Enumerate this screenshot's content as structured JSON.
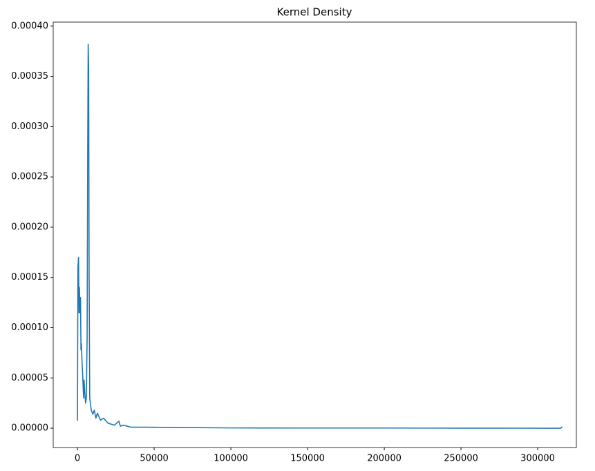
{
  "chart_data": {
    "type": "line",
    "title": "Kernel Density",
    "x": [
      0,
      300,
      700,
      1000,
      1300,
      1600,
      2000,
      2300,
      2600,
      3000,
      3500,
      4000,
      4300,
      4800,
      5300,
      5800,
      6300,
      6700,
      7000,
      7300,
      7600,
      8000,
      9000,
      10000,
      11000,
      12000,
      13000,
      15000,
      17000,
      20000,
      24000,
      27000,
      28000,
      30000,
      35000,
      45000,
      60000,
      100000,
      150000,
      200000,
      250000,
      315000,
      316000
    ],
    "series": [
      {
        "color": "#1f77b4",
        "values": [
          7.5e-06,
          0.00016,
          0.00017,
          0.000115,
          0.00014,
          0.000115,
          0.00013,
          7.8e-05,
          8.4e-05,
          6.5e-05,
          5e-05,
          3e-05,
          4.8e-05,
          3.5e-05,
          2.5e-05,
          3e-05,
          9e-05,
          0.00028,
          0.000382,
          0.00036,
          0.00015,
          3e-05,
          1.8e-05,
          1.4e-05,
          1.8e-05,
          1e-05,
          1.5e-05,
          8e-06,
          1e-05,
          5e-06,
          3e-06,
          7e-06,
          2e-06,
          3e-06,
          1e-06,
          1e-06,
          8e-07,
          3e-07,
          2e-07,
          2e-07,
          1e-07,
          0,
          1.5e-06
        ]
      }
    ],
    "xlim": [
      -15800,
      325200
    ],
    "xticks": [
      0,
      50000,
      100000,
      150000,
      200000,
      250000,
      300000
    ],
    "ylim": [
      -1.92e-05,
      0.000404
    ],
    "yticks": [
      {
        "value": 0,
        "label": "0.00000"
      },
      {
        "value": 5e-05,
        "label": "0.00005"
      },
      {
        "value": 0.0001,
        "label": "0.00010"
      },
      {
        "value": 0.00015,
        "label": "0.00015"
      },
      {
        "value": 0.0002,
        "label": "0.00020"
      },
      {
        "value": 0.00025,
        "label": "0.00025"
      },
      {
        "value": 0.0003,
        "label": "0.00030"
      },
      {
        "value": 0.00035,
        "label": "0.00035"
      },
      {
        "value": 0.0004,
        "label": "0.00040"
      }
    ]
  }
}
